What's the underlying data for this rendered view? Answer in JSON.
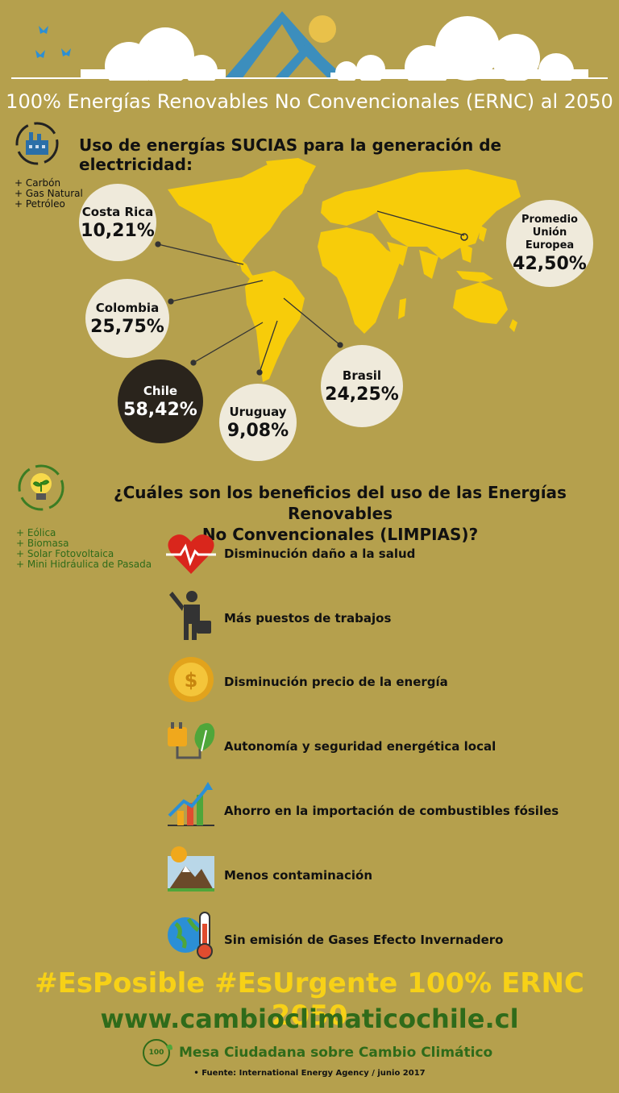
{
  "header": {
    "title": "100% Energías Renovables No Convencionales (ERNC) al 2050"
  },
  "dirty": {
    "heading": "Uso de energías SUCIAS para la generación de electricidad:",
    "sources": [
      "+ Carbón",
      "+ Gas Natural",
      "+ Petróleo"
    ]
  },
  "countries": [
    {
      "name": "Costa Rica",
      "value": "10,21%"
    },
    {
      "name": "Colombia",
      "value": "25,75%"
    },
    {
      "name": "Chile",
      "value": "58,42%"
    },
    {
      "name": "Uruguay",
      "value": "9,08%"
    },
    {
      "name": "Brasil",
      "value": "24,25%"
    },
    {
      "name": "Promedio Unión Europea",
      "value": "42,50%"
    }
  ],
  "clean": {
    "heading_line1": "¿Cuáles son los beneficios del uso de las Energías Renovables",
    "heading_line2": "No Convencionales (LIMPIAS)?",
    "sources": [
      "+ Eólica",
      "+ Biomasa",
      "+ Solar Fotovoltaica",
      "+ Mini Hidráulica de Pasada"
    ]
  },
  "benefits": [
    {
      "label": "Disminución daño a la salud",
      "icon": "heart-pulse-icon"
    },
    {
      "label": "Más puestos de trabajos",
      "icon": "worker-icon"
    },
    {
      "label": "Disminución precio de la energía",
      "icon": "coin-icon"
    },
    {
      "label": "Autonomía y seguridad energética local",
      "icon": "plug-leaf-icon"
    },
    {
      "label": "Ahorro en la importación de combustibles fósiles",
      "icon": "growth-chart-icon"
    },
    {
      "label": "Menos contaminación",
      "icon": "mountain-icon"
    },
    {
      "label": "Sin emisión de Gases Efecto Invernadero",
      "icon": "globe-thermometer-icon"
    }
  ],
  "footer": {
    "hashtags": "#EsPosible #EsUrgente 100% ERNC 2050",
    "url": "www.cambioclimaticochile.cl",
    "org": "Mesa Ciudadana sobre Cambio Climático",
    "logo_text": "100",
    "source": "• Fuente: International Energy Agency / junio 2017"
  },
  "colors": {
    "background": "#b5a04d",
    "map": "#f7cc0a",
    "bubble": "#efeadb",
    "dark_bubble": "#2a241c",
    "hashtag": "#f7d117",
    "green": "#2f6b1a"
  }
}
